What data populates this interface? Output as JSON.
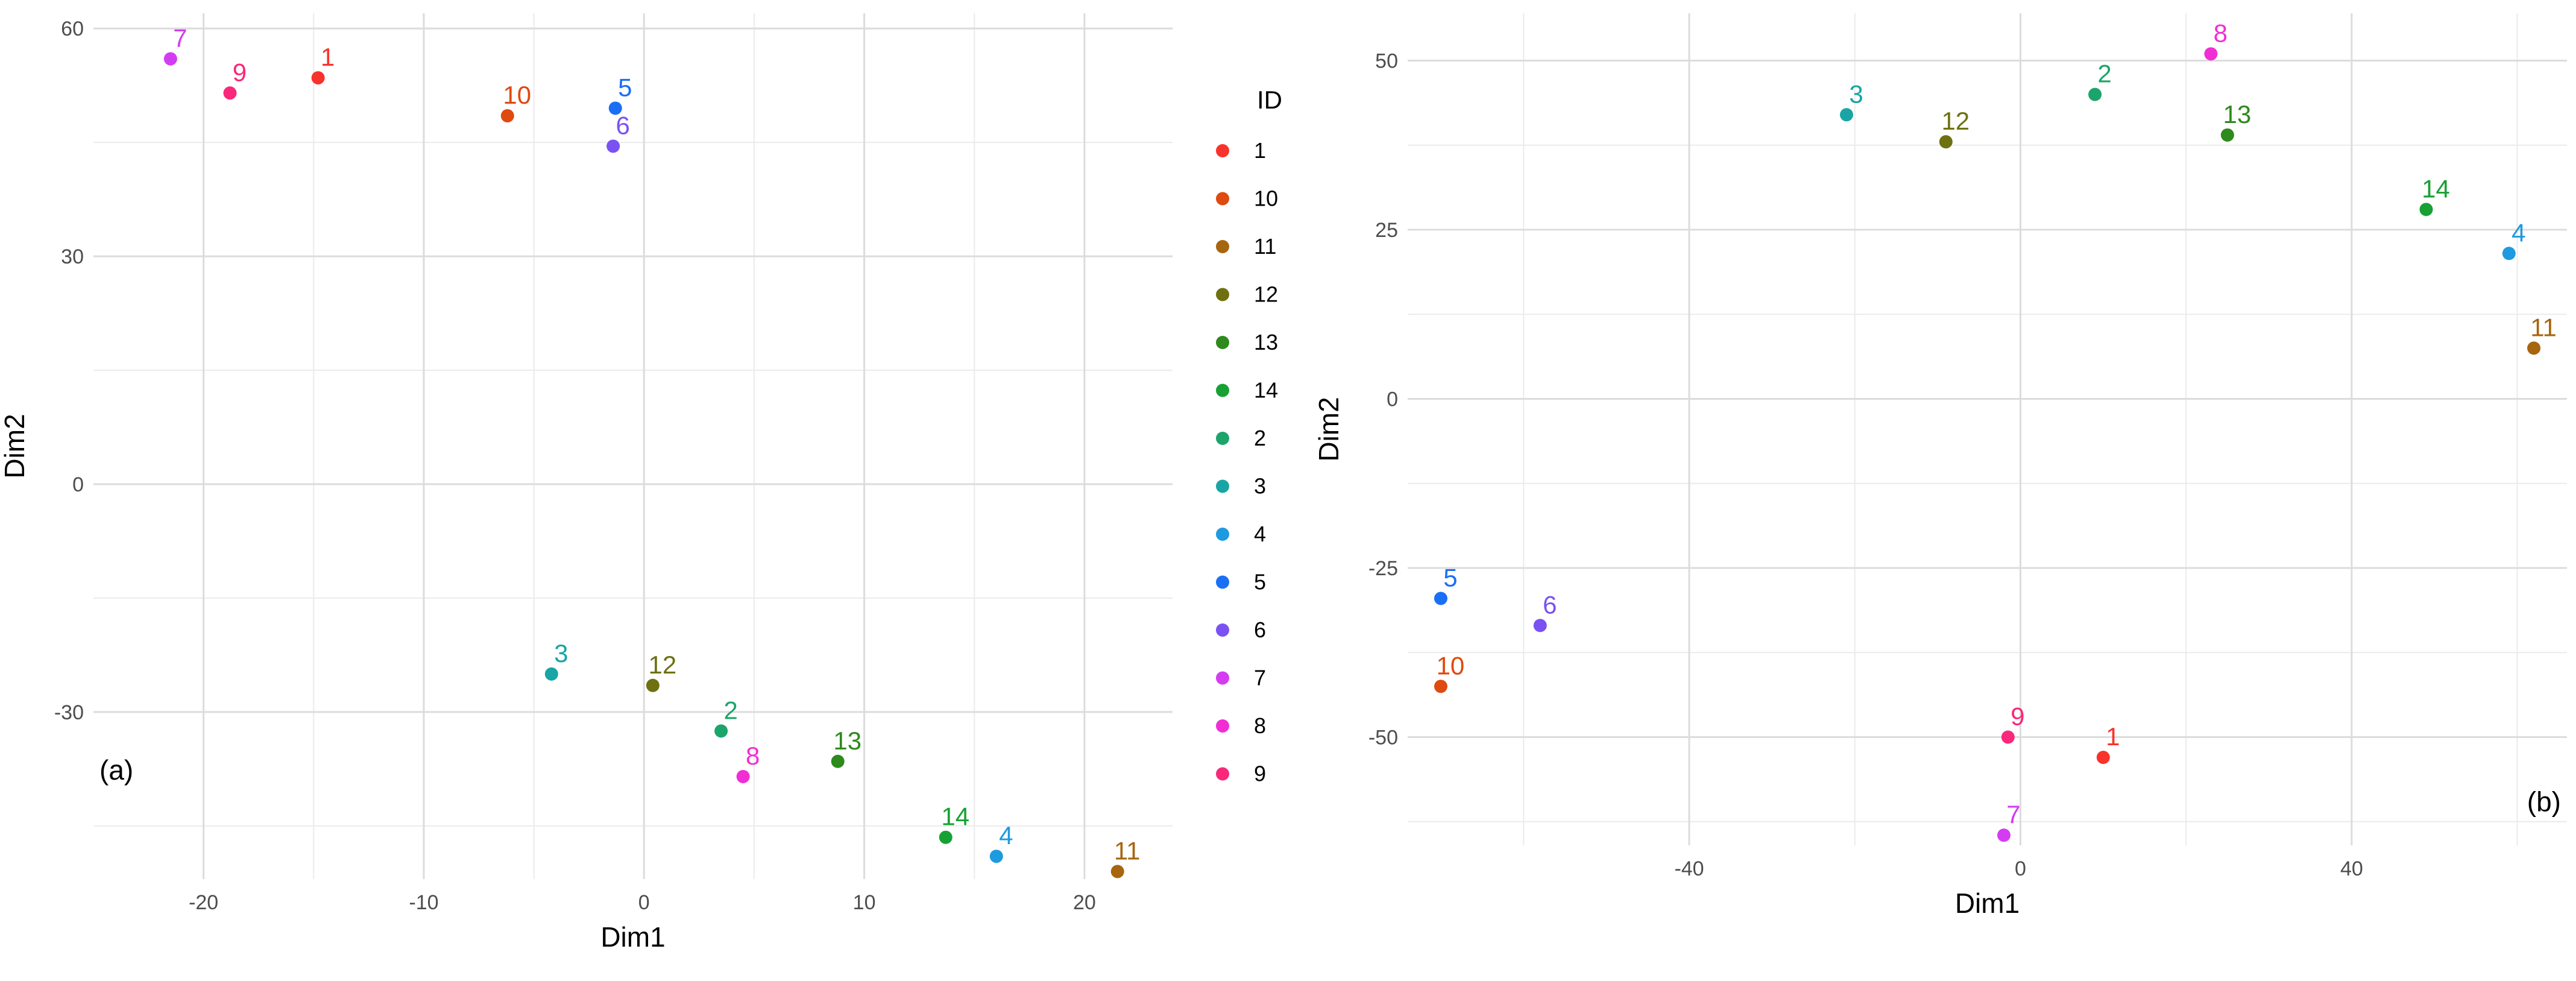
{
  "legend": {
    "title": "ID",
    "items": [
      {
        "id": "1",
        "color": "#F8332B"
      },
      {
        "id": "10",
        "color": "#DE4A0F"
      },
      {
        "id": "11",
        "color": "#A7650F"
      },
      {
        "id": "12",
        "color": "#6E7110"
      },
      {
        "id": "13",
        "color": "#2E8A1C"
      },
      {
        "id": "14",
        "color": "#17A133"
      },
      {
        "id": "2",
        "color": "#1CA56B"
      },
      {
        "id": "3",
        "color": "#19A5A5"
      },
      {
        "id": "4",
        "color": "#1E9AE0"
      },
      {
        "id": "5",
        "color": "#1B6FF5"
      },
      {
        "id": "6",
        "color": "#7A52F2"
      },
      {
        "id": "7",
        "color": "#D43CF2"
      },
      {
        "id": "8",
        "color": "#F12ED4"
      },
      {
        "id": "9",
        "color": "#FA287A"
      }
    ]
  },
  "chart_data": [
    {
      "type": "scatter",
      "panel_label": "(a)",
      "xlabel": "Dim1",
      "ylabel": "Dim2",
      "xlim": [
        -25,
        24
      ],
      "ylim": [
        -52,
        62
      ],
      "xticks": [
        -20,
        -10,
        0,
        10,
        20
      ],
      "yticks": [
        -30,
        0,
        30,
        60
      ],
      "grid": true,
      "legend_position": "right",
      "points": [
        {
          "id": "1",
          "x": -14.8,
          "y": 53.5
        },
        {
          "id": "2",
          "x": 3.5,
          "y": -32.5
        },
        {
          "id": "3",
          "x": -4.2,
          "y": -25.0
        },
        {
          "id": "4",
          "x": 16.0,
          "y": -49.0
        },
        {
          "id": "5",
          "x": -1.3,
          "y": 49.5
        },
        {
          "id": "6",
          "x": -1.4,
          "y": 44.5
        },
        {
          "id": "7",
          "x": -21.5,
          "y": 56.0
        },
        {
          "id": "8",
          "x": 4.5,
          "y": -38.5
        },
        {
          "id": "9",
          "x": -18.8,
          "y": 51.5
        },
        {
          "id": "10",
          "x": -6.2,
          "y": 48.5
        },
        {
          "id": "11",
          "x": 21.5,
          "y": -51.0
        },
        {
          "id": "12",
          "x": 0.4,
          "y": -26.5
        },
        {
          "id": "13",
          "x": 8.8,
          "y": -36.5
        },
        {
          "id": "14",
          "x": 13.7,
          "y": -46.5
        }
      ]
    },
    {
      "type": "scatter",
      "panel_label": "(b)",
      "xlabel": "Dim1",
      "ylabel": "Dim2",
      "xlim": [
        -74,
        66
      ],
      "ylim": [
        -66,
        57
      ],
      "xticks": [
        -40,
        0,
        40
      ],
      "yticks": [
        -50,
        -25,
        0,
        25,
        50
      ],
      "grid": true,
      "points": [
        {
          "id": "1",
          "x": 10.0,
          "y": -53.0
        },
        {
          "id": "2",
          "x": 9.0,
          "y": 45.0
        },
        {
          "id": "3",
          "x": -21.0,
          "y": 42.0
        },
        {
          "id": "4",
          "x": 59.0,
          "y": 21.5
        },
        {
          "id": "5",
          "x": -70.0,
          "y": -29.5
        },
        {
          "id": "6",
          "x": -58.0,
          "y": -33.5
        },
        {
          "id": "7",
          "x": -2.0,
          "y": -64.5
        },
        {
          "id": "8",
          "x": 23.0,
          "y": 51.0
        },
        {
          "id": "9",
          "x": -1.5,
          "y": -50.0
        },
        {
          "id": "10",
          "x": -70.0,
          "y": -42.5
        },
        {
          "id": "11",
          "x": 62.0,
          "y": 7.5
        },
        {
          "id": "12",
          "x": -9.0,
          "y": 38.0
        },
        {
          "id": "13",
          "x": 25.0,
          "y": 39.0
        },
        {
          "id": "14",
          "x": 49.0,
          "y": 28.0
        }
      ]
    }
  ]
}
